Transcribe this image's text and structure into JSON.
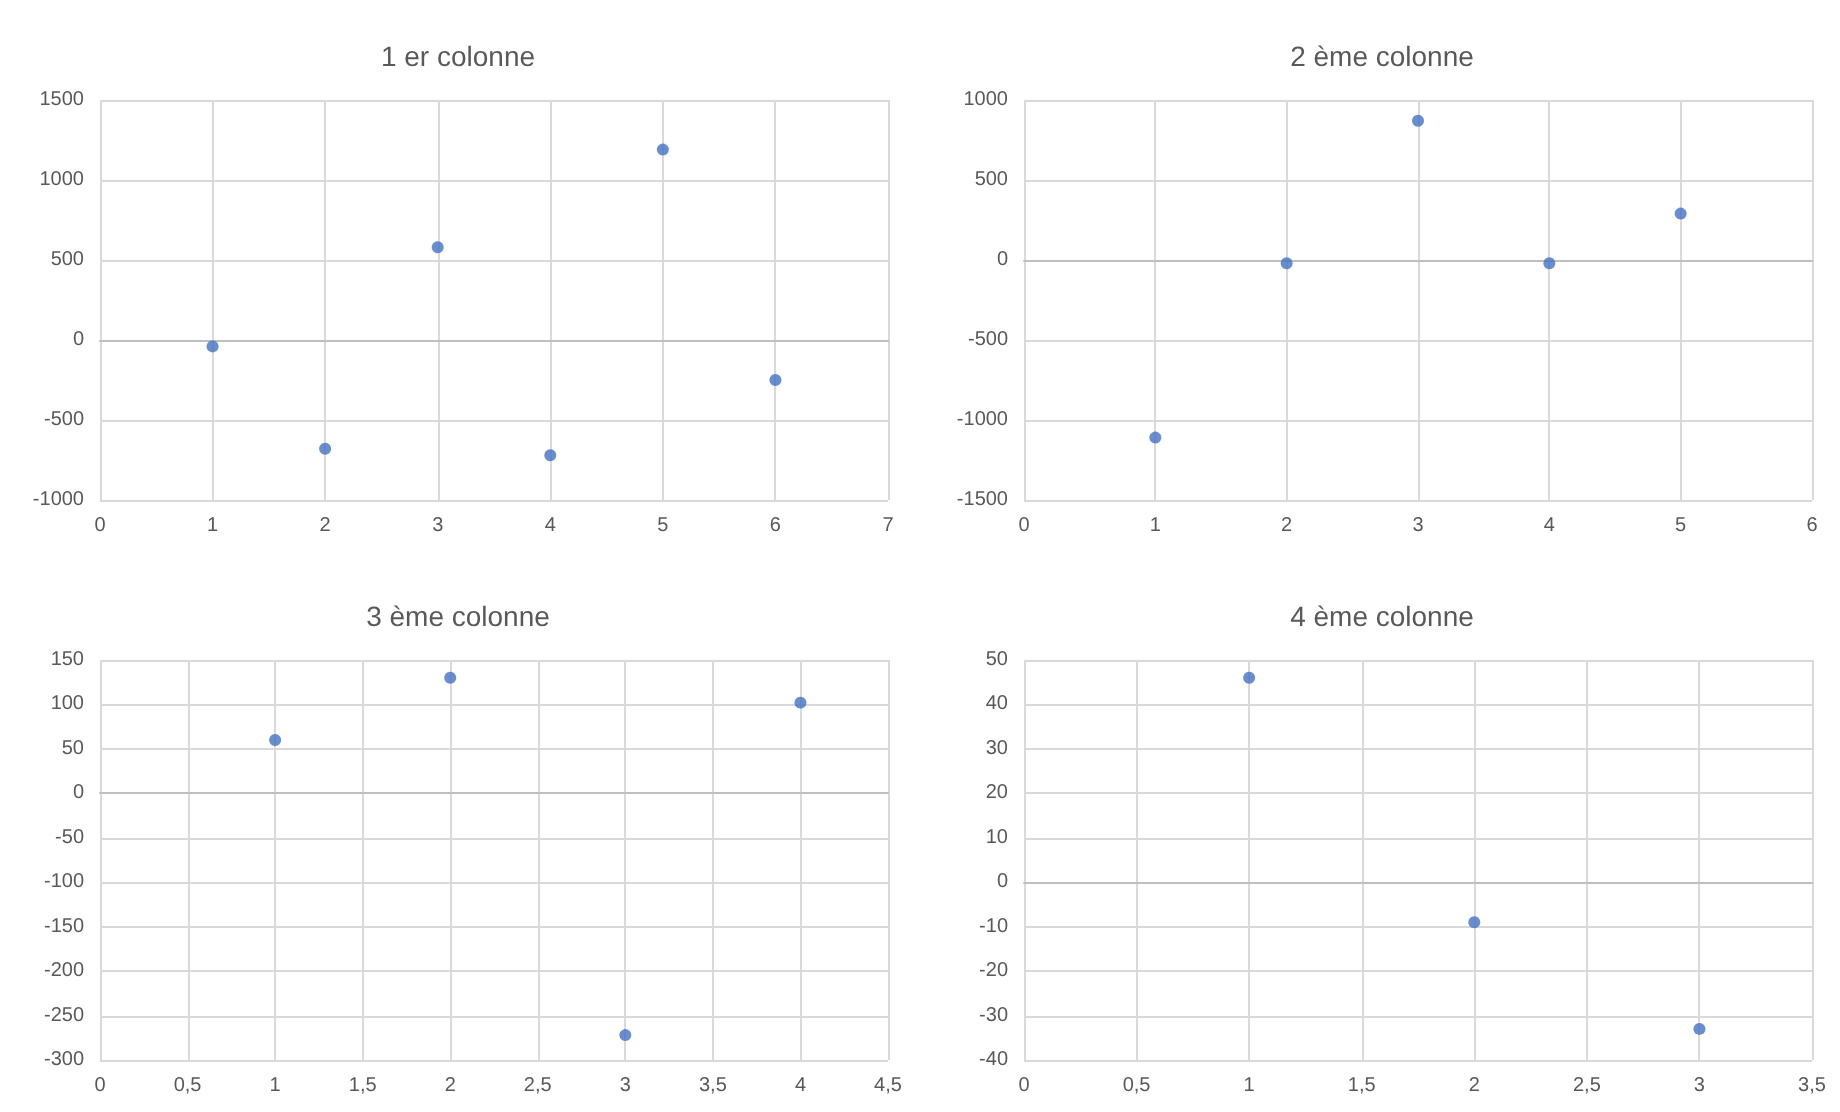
{
  "chart_data": [
    {
      "type": "scatter",
      "title": "1 er colonne",
      "x": [
        1,
        2,
        3,
        4,
        5,
        6
      ],
      "values": [
        -40,
        -680,
        580,
        -720,
        1190,
        -250
      ],
      "color": "#4472c4",
      "xlim": [
        0,
        7
      ],
      "xticks": [
        0,
        1,
        2,
        3,
        4,
        5,
        6,
        7
      ],
      "ylim": [
        -1000,
        1500
      ],
      "yticks": [
        -1000,
        -500,
        0,
        500,
        1000,
        1500
      ],
      "grid": true,
      "marker": "circle"
    },
    {
      "type": "scatter",
      "title": "2 ème colonne",
      "x": [
        1,
        2,
        3,
        4,
        5
      ],
      "values": [
        -1110,
        -20,
        870,
        -20,
        290
      ],
      "color": "#4472c4",
      "xlim": [
        0,
        6
      ],
      "xticks": [
        0,
        1,
        2,
        3,
        4,
        5,
        6
      ],
      "ylim": [
        -1500,
        1000
      ],
      "yticks": [
        -1500,
        -1000,
        -500,
        0,
        500,
        1000
      ],
      "grid": true,
      "marker": "circle"
    },
    {
      "type": "scatter",
      "title": "3 ème colonne",
      "x": [
        1,
        2,
        3,
        4
      ],
      "values": [
        60,
        130,
        -272,
        102
      ],
      "color": "#4472c4",
      "xlim": [
        0,
        4.5
      ],
      "xticks": [
        0,
        {
          "value": 0.5,
          "label": "0,5"
        },
        1,
        {
          "value": 1.5,
          "label": "1,5"
        },
        2,
        {
          "value": 2.5,
          "label": "2,5"
        },
        3,
        {
          "value": 3.5,
          "label": "3,5"
        },
        4,
        {
          "value": 4.5,
          "label": "4,5"
        }
      ],
      "ylim": [
        -300,
        150
      ],
      "yticks": [
        -300,
        -250,
        -200,
        -150,
        -100,
        -50,
        0,
        50,
        100,
        150
      ],
      "grid": true,
      "marker": "circle"
    },
    {
      "type": "scatter",
      "title": "4 ème colonne",
      "x": [
        1,
        2,
        3
      ],
      "values": [
        46,
        -9,
        -33
      ],
      "color": "#4472c4",
      "xlim": [
        0,
        3.5
      ],
      "xticks": [
        0,
        {
          "value": 0.5,
          "label": "0,5"
        },
        1,
        {
          "value": 1.5,
          "label": "1,5"
        },
        2,
        {
          "value": 2.5,
          "label": "2,5"
        },
        3,
        {
          "value": 3.5,
          "label": "3,5"
        }
      ],
      "ylim": [
        -40,
        50
      ],
      "yticks": [
        -40,
        -30,
        -20,
        -10,
        0,
        10,
        20,
        30,
        40,
        50
      ],
      "grid": true,
      "marker": "circle"
    }
  ]
}
